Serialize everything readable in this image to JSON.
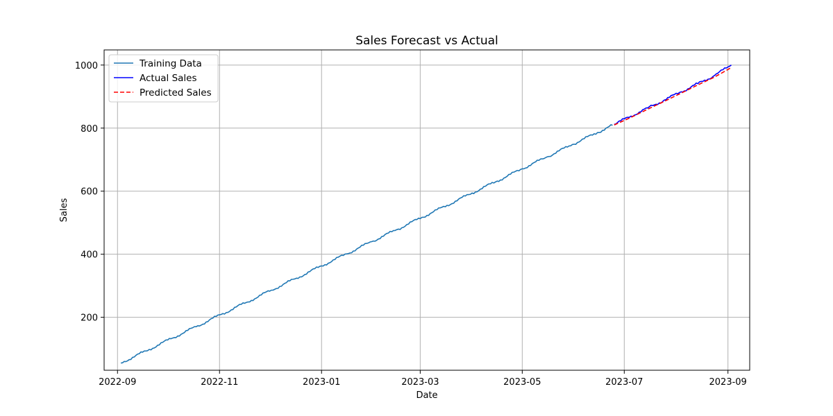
{
  "chart_data": {
    "type": "line",
    "title": "Sales Forecast vs Actual",
    "xlabel": "Date",
    "ylabel": "Sales",
    "x_axis_type": "date",
    "xlim": [
      "2022-08-24",
      "2023-09-14"
    ],
    "ylim": [
      32,
      1048
    ],
    "x_ticks": [
      "2022-09",
      "2022-11",
      "2023-01",
      "2023-03",
      "2023-05",
      "2023-07",
      "2023-09"
    ],
    "y_ticks": [
      200,
      400,
      600,
      800,
      1000
    ],
    "grid": true,
    "legend_position": "top-left",
    "series": [
      {
        "name": "Training Data",
        "color": "#1f77b4",
        "style": "solid",
        "x": [
          "2022-09-03",
          "2022-09-18",
          "2022-10-03",
          "2022-10-18",
          "2022-11-02",
          "2022-11-17",
          "2022-12-02",
          "2022-12-17",
          "2023-01-01",
          "2023-01-16",
          "2023-01-31",
          "2023-02-15",
          "2023-03-02",
          "2023-03-17",
          "2023-04-01",
          "2023-04-16",
          "2023-05-01",
          "2023-05-16",
          "2023-05-31",
          "2023-06-15",
          "2023-06-24"
        ],
        "y": [
          55,
          93,
          132,
          170,
          209,
          247,
          286,
          324,
          363,
          401,
          440,
          478,
          517,
          555,
          594,
          632,
          671,
          709,
          748,
          786,
          809
        ]
      },
      {
        "name": "Actual Sales",
        "color": "#0000ff",
        "style": "solid",
        "x": [
          "2023-06-25",
          "2023-07-05",
          "2023-07-15",
          "2023-07-25",
          "2023-08-04",
          "2023-08-14",
          "2023-08-24",
          "2023-09-03"
        ],
        "y": [
          812,
          838,
          864,
          889,
          915,
          941,
          967,
          1000
        ]
      },
      {
        "name": "Predicted Sales",
        "color": "#ff0000",
        "style": "dashed",
        "x": [
          "2023-06-25",
          "2023-07-05",
          "2023-07-15",
          "2023-07-25",
          "2023-08-04",
          "2023-08-14",
          "2023-08-24",
          "2023-09-03"
        ],
        "y": [
          810,
          834,
          860,
          885,
          911,
          937,
          962,
          992
        ]
      }
    ]
  }
}
